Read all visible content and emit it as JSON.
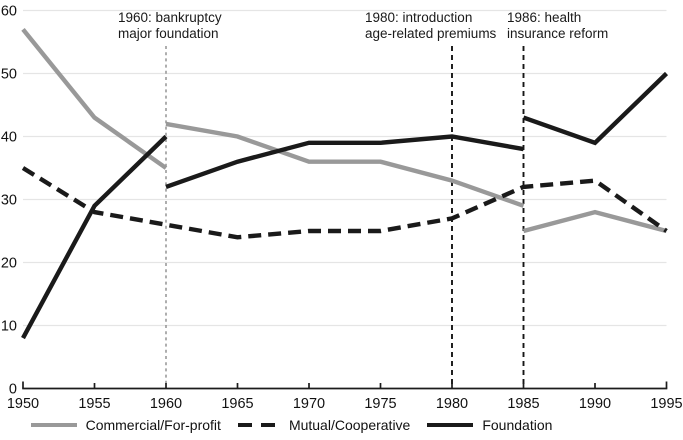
{
  "chart_data": {
    "type": "line",
    "title": "",
    "xlabel": "",
    "ylabel": "",
    "xlim": [
      1950,
      1995
    ],
    "ylim": [
      0,
      60
    ],
    "x_ticks": [
      1950,
      1955,
      1960,
      1965,
      1970,
      1975,
      1980,
      1985,
      1990,
      1995
    ],
    "y_ticks": [
      0,
      10,
      20,
      30,
      40,
      50,
      60
    ],
    "grid": "horizontal-light-gray",
    "legend_position": "bottom-center",
    "colors": {
      "grid": "#e5e5e5",
      "axis": "#1c1c1c",
      "gray_series": "#999999",
      "black_series": "#1a1a1a",
      "event_line_1960": "#8c8c8c",
      "event_line_dark": "#161616"
    },
    "series": [
      {
        "id": "commercial",
        "name": "Commercial/For-profit",
        "color": "#999999",
        "style": "solid",
        "segments": [
          {
            "x": [
              1950,
              1955,
              1960
            ],
            "y": [
              57,
              43,
              35
            ]
          },
          {
            "x": [
              1960,
              1965,
              1970,
              1975,
              1980,
              1985
            ],
            "y": [
              42,
              40,
              36,
              36,
              33,
              29
            ]
          },
          {
            "x": [
              1985,
              1990,
              1995
            ],
            "y": [
              25,
              28,
              25
            ]
          }
        ]
      },
      {
        "id": "mutual",
        "name": "Mutual/Cooperative",
        "color": "#1a1a1a",
        "style": "dashed",
        "segments": [
          {
            "x": [
              1950,
              1955,
              1960,
              1965,
              1970,
              1975,
              1980,
              1985,
              1990,
              1995
            ],
            "y": [
              35,
              28,
              26,
              24,
              25,
              25,
              27,
              32,
              33,
              25
            ]
          }
        ]
      },
      {
        "id": "foundation",
        "name": "Foundation",
        "color": "#1a1a1a",
        "style": "solid",
        "segments": [
          {
            "x": [
              1950,
              1955,
              1960
            ],
            "y": [
              8,
              29,
              40
            ]
          },
          {
            "x": [
              1960,
              1965,
              1970,
              1975,
              1980,
              1985
            ],
            "y": [
              32,
              36,
              39,
              39,
              40,
              38
            ]
          },
          {
            "x": [
              1985,
              1990,
              1995
            ],
            "y": [
              43,
              39,
              50
            ]
          }
        ]
      }
    ],
    "events": [
      {
        "line_year": 1960,
        "text_line1": "1960: bankruptcy",
        "text_line2": "major foundation",
        "line_color": "#8c8c8c",
        "line_style": "fine-dash"
      },
      {
        "line_year": 1980,
        "text_line1": "1980: introduction",
        "text_line2": "age-related premiums",
        "line_color": "#161616",
        "line_style": "dash"
      },
      {
        "line_year": 1985,
        "text_line1": "1986: health",
        "text_line2": "insurance reform",
        "line_color": "#161616",
        "line_style": "dash"
      }
    ]
  }
}
